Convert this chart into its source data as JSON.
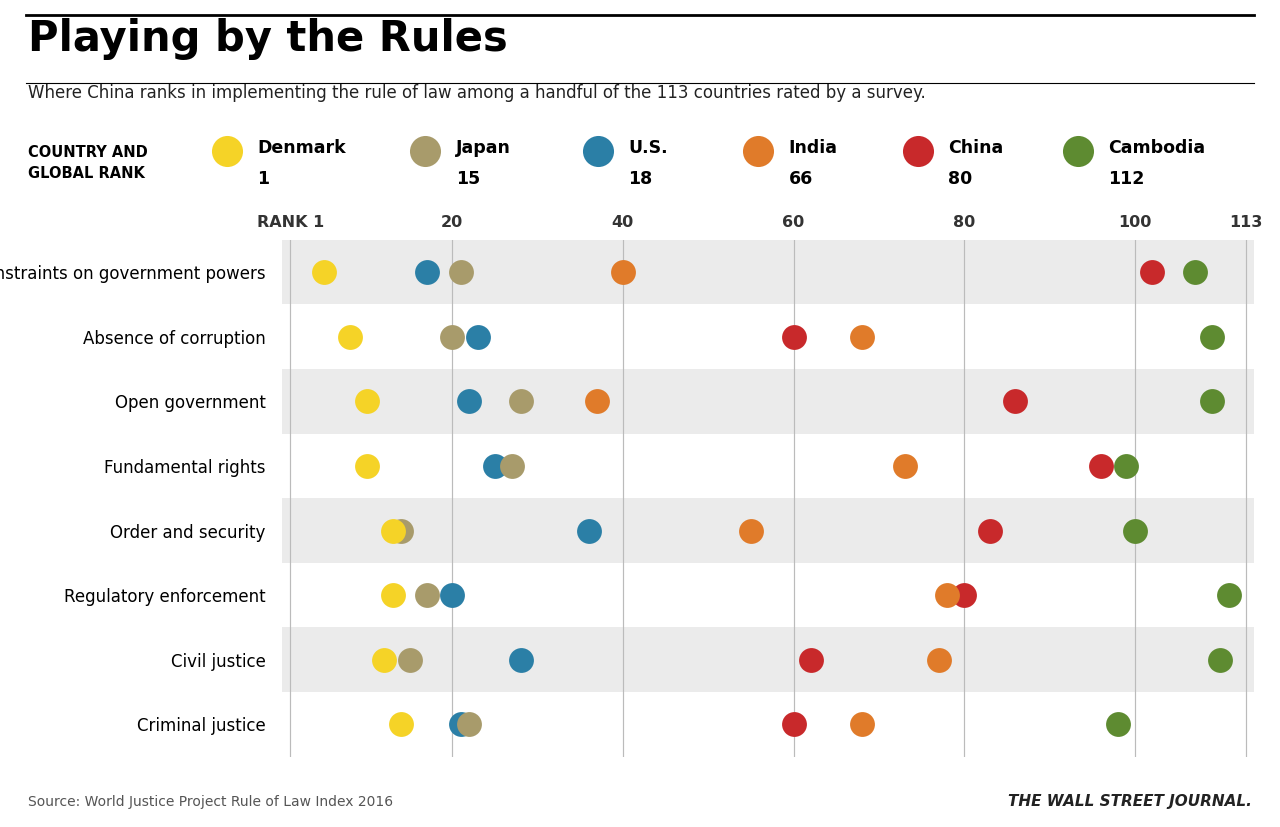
{
  "title": "Playing by the Rules",
  "subtitle": "Where China ranks in implementing the rule of law among a handful of the 113 countries rated by a survey.",
  "source": "Source: World Justice Project Rule of Law Index 2016",
  "wsj": "THE WALL STREET JOURNAL.",
  "countries": [
    "Denmark",
    "Japan",
    "U.S.",
    "India",
    "China",
    "Cambodia"
  ],
  "ranks": [
    "1",
    "15",
    "18",
    "66",
    "80",
    "112"
  ],
  "colors": [
    "#F5D327",
    "#A89B6B",
    "#2B7FA6",
    "#E07B2A",
    "#C8292B",
    "#5E8B31"
  ],
  "categories": [
    "Constraints on government powers",
    "Absence of corruption",
    "Open government",
    "Fundamental rights",
    "Order and security",
    "Regulatory enforcement",
    "Civil justice",
    "Criminal justice"
  ],
  "dot_data": {
    "Denmark": [
      5,
      8,
      10,
      10,
      13,
      13,
      12,
      14
    ],
    "Japan": [
      21,
      20,
      28,
      27,
      14,
      17,
      15,
      22
    ],
    "U.S.": [
      17,
      23,
      22,
      25,
      36,
      20,
      28,
      21
    ],
    "India": [
      40,
      68,
      37,
      73,
      55,
      78,
      77,
      68
    ],
    "China": [
      102,
      60,
      86,
      96,
      83,
      80,
      62,
      60
    ],
    "Cambodia": [
      107,
      109,
      109,
      99,
      100,
      111,
      110,
      98
    ]
  },
  "axis_ticks": [
    1,
    20,
    40,
    60,
    80,
    100,
    113
  ],
  "axis_labels": [
    "RANK 1",
    "20",
    "40",
    "60",
    "80",
    "100",
    "113"
  ],
  "xmin": 1,
  "xmax": 113,
  "dot_size": 320,
  "bg_colors": [
    "#EBEBEB",
    "#FFFFFF"
  ]
}
